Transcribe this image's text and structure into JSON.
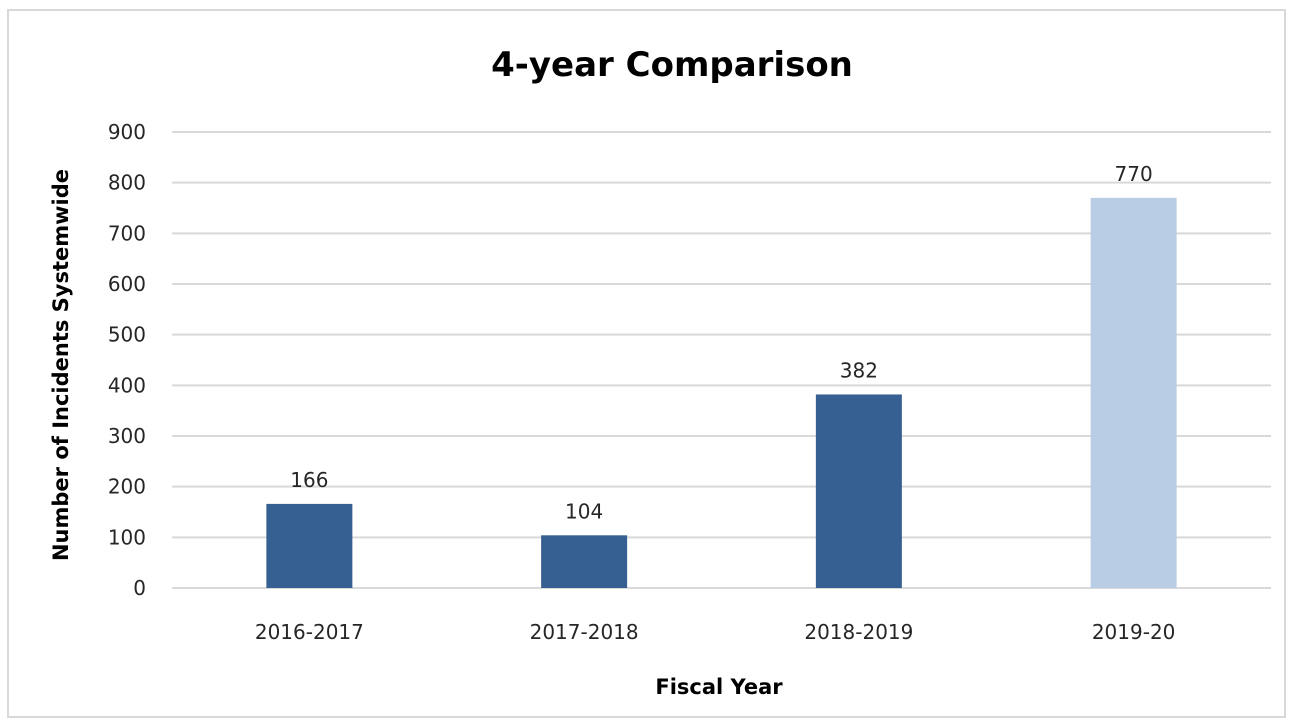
{
  "chart_data": {
    "type": "bar",
    "title": "4-year Comparison",
    "xlabel": "Fiscal Year",
    "ylabel": "Number of Incidents Systemwide",
    "categories": [
      "2016-2017",
      "2017-2018",
      "2018-2019",
      "2019-20"
    ],
    "values": [
      166,
      104,
      382,
      770
    ],
    "data_labels": [
      "166",
      "104",
      "382",
      "770"
    ],
    "bar_colors": [
      "#376092",
      "#376092",
      "#376092",
      "#b9cde5"
    ],
    "ylim": [
      0,
      900
    ],
    "yticks": [
      0,
      100,
      200,
      300,
      400,
      500,
      600,
      700,
      800,
      900
    ],
    "ytick_labels": [
      "0",
      "100",
      "200",
      "300",
      "400",
      "500",
      "600",
      "700",
      "800",
      "900"
    ],
    "grid": true,
    "legend": "none"
  },
  "colors": {
    "gridline": "#d9d9d9",
    "frame_border": "#d9d9d9",
    "text": "#262626"
  }
}
